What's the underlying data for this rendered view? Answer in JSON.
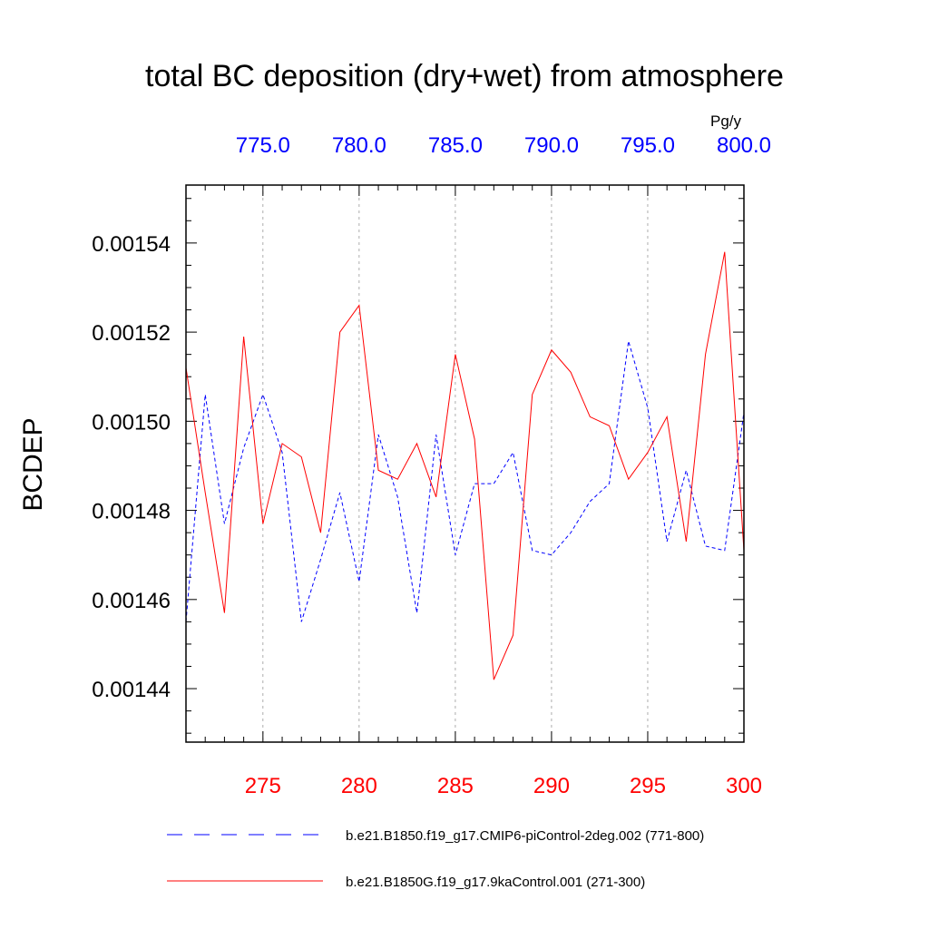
{
  "chart_data": {
    "type": "line",
    "title": "total BC deposition (dry+wet) from atmosphere",
    "ylabel": "BCDEP",
    "units": "Pg/y",
    "ylim": [
      0.001428,
      0.001553
    ],
    "yticks": [
      "0.00144",
      "0.00146",
      "0.00148",
      "0.00150",
      "0.00152",
      "0.00154"
    ],
    "top_axis": {
      "xlim": [
        771,
        800
      ],
      "ticks": [
        "775.0",
        "780.0",
        "785.0",
        "790.0",
        "795.0",
        "800.0"
      ],
      "color": "#0000ff"
    },
    "bottom_axis": {
      "xlim": [
        271,
        300
      ],
      "ticks": [
        "275",
        "280",
        "285",
        "290",
        "295",
        "300"
      ],
      "color": "#ff0000"
    },
    "grid": "vertical dashed at major top ticks",
    "legend_position": "bottom",
    "series": [
      {
        "name": "b.e21.B1850.f19_g17.CMIP6-piControl-2deg.002 (771-800)",
        "axis": "top",
        "color": "#0000ff",
        "style": "dashed",
        "x": [
          771,
          772,
          773,
          774,
          775,
          776,
          777,
          778,
          779,
          780,
          781,
          782,
          783,
          784,
          785,
          786,
          787,
          788,
          789,
          790,
          791,
          792,
          793,
          794,
          795,
          796,
          797,
          798,
          799,
          800
        ],
        "values": [
          0.001455,
          0.001506,
          0.001477,
          0.001494,
          0.001506,
          0.001493,
          0.001455,
          0.001469,
          0.001484,
          0.001464,
          0.001497,
          0.001483,
          0.001457,
          0.001497,
          0.00147,
          0.001486,
          0.001486,
          0.001493,
          0.001471,
          0.00147,
          0.001475,
          0.001482,
          0.001486,
          0.001518,
          0.001503,
          0.001473,
          0.001489,
          0.001472,
          0.001471,
          0.001502
        ]
      },
      {
        "name": "b.e21.B1850G.f19_g17.9kaControl.001 (271-300)",
        "axis": "bottom",
        "color": "#ff0000",
        "style": "solid",
        "x": [
          271,
          272,
          273,
          274,
          275,
          276,
          277,
          278,
          279,
          280,
          281,
          282,
          283,
          284,
          285,
          286,
          287,
          288,
          289,
          290,
          291,
          292,
          293,
          294,
          295,
          296,
          297,
          298,
          299,
          300
        ],
        "values": [
          0.001512,
          0.001484,
          0.001457,
          0.001519,
          0.001477,
          0.001495,
          0.001492,
          0.001475,
          0.00152,
          0.001526,
          0.001489,
          0.001487,
          0.001495,
          0.001483,
          0.001515,
          0.001496,
          0.001442,
          0.001452,
          0.001506,
          0.001516,
          0.001511,
          0.001501,
          0.001499,
          0.001487,
          0.001493,
          0.001501,
          0.001473,
          0.001515,
          0.001538,
          0.001471
        ]
      }
    ]
  }
}
